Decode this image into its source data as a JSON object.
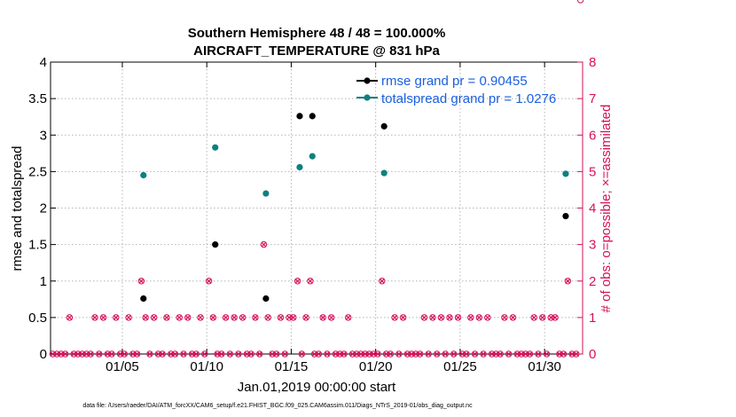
{
  "chart_data": {
    "type": "scatter",
    "title_line1": "Southern Hemisphere 48 / 48 = 100.000%",
    "title_line2": "AIRCRAFT_TEMPERATURE @ 831 hPa",
    "ylabel_left": "rmse and totalspread",
    "ylabel_right": "# of obs: o=possible; ×=assimilated",
    "xlabel": "Jan.01,2019 00:00:00 start",
    "footer": "data file: /Users/raeder/DAI/ATM_forcXX/CAM6_setup/f.e21.FHIST_BGC.f09_025.CAM6assim.011/Diags_NTrS_2019-01/obs_diag_output.nc",
    "xlim": [
      0.75,
      32.25
    ],
    "ylim_left": [
      0,
      4
    ],
    "ylim_right": [
      0,
      8
    ],
    "left_ticks": [
      "0",
      "0.5",
      "1",
      "1.5",
      "2",
      "2.5",
      "3",
      "3.5",
      "4"
    ],
    "left_tick_values": [
      0,
      0.5,
      1,
      1.5,
      2,
      2.5,
      3,
      3.5,
      4
    ],
    "right_ticks": [
      "0",
      "1",
      "2",
      "3",
      "4",
      "5",
      "6",
      "7",
      "8"
    ],
    "right_tick_values": [
      0,
      1,
      2,
      3,
      4,
      5,
      6,
      7,
      8
    ],
    "x_ticks": [
      "01/05",
      "01/10",
      "01/15",
      "01/20",
      "01/25",
      "01/30"
    ],
    "x_tick_values": [
      5,
      10,
      15,
      20,
      25,
      30
    ],
    "series": [
      {
        "name": "rmse",
        "legend": "rmse grand pr = 0.90455",
        "color": "#000000",
        "x": [
          6.25,
          10.5,
          13.5,
          15.5,
          16.25,
          20.5,
          31.25
        ],
        "y": [
          0.76,
          1.5,
          0.76,
          3.26,
          3.26,
          3.12,
          1.89
        ]
      },
      {
        "name": "totalspread",
        "legend": "totalspread grand pr = 1.0276",
        "color": "#0e8080",
        "x": [
          6.25,
          10.5,
          13.5,
          15.5,
          16.25,
          20.5,
          31.25
        ],
        "y": [
          2.45,
          2.83,
          2.2,
          2.56,
          2.71,
          2.48,
          2.47
        ]
      }
    ],
    "obs_color": "#d6125a",
    "obs": {
      "x": [
        0.875,
        1.125,
        1.375,
        1.625,
        1.875,
        2.125,
        2.375,
        2.625,
        2.875,
        3.125,
        3.375,
        3.625,
        3.875,
        4.125,
        4.375,
        4.625,
        4.875,
        5.125,
        5.375,
        5.625,
        5.875,
        6.125,
        6.375,
        6.625,
        6.875,
        7.125,
        7.375,
        7.625,
        7.875,
        8.125,
        8.375,
        8.625,
        8.875,
        9.125,
        9.375,
        9.625,
        9.875,
        10.125,
        10.375,
        10.625,
        10.875,
        11.125,
        11.375,
        11.625,
        11.875,
        12.125,
        12.375,
        12.625,
        12.875,
        13.125,
        13.375,
        13.625,
        13.875,
        14.125,
        14.375,
        14.625,
        14.875,
        15.125,
        15.375,
        15.625,
        15.875,
        16.125,
        16.375,
        16.625,
        16.875,
        17.125,
        17.375,
        17.625,
        17.875,
        18.125,
        18.375,
        18.625,
        18.875,
        19.125,
        19.375,
        19.625,
        19.875,
        20.125,
        20.375,
        20.625,
        20.875,
        21.125,
        21.375,
        21.625,
        21.875,
        22.125,
        22.375,
        22.625,
        22.875,
        23.125,
        23.375,
        23.625,
        23.875,
        24.125,
        24.375,
        24.625,
        24.875,
        25.125,
        25.375,
        25.625,
        25.875,
        26.125,
        26.375,
        26.625,
        26.875,
        27.125,
        27.375,
        27.625,
        27.875,
        28.125,
        28.375,
        28.625,
        28.875,
        29.125,
        29.375,
        29.625,
        29.875,
        30.125,
        30.375,
        30.625,
        30.875,
        31.125,
        31.375,
        31.625,
        31.875,
        32.125
      ],
      "count": [
        0,
        0,
        0,
        0,
        1,
        0,
        0,
        0,
        0,
        0,
        1,
        0,
        1,
        0,
        0,
        1,
        0,
        0,
        1,
        0,
        0,
        2,
        1,
        0,
        1,
        0,
        0,
        1,
        0,
        0,
        1,
        0,
        1,
        0,
        0,
        1,
        0,
        2,
        1,
        0,
        0,
        1,
        0,
        1,
        0,
        1,
        0,
        0,
        1,
        0,
        3,
        1,
        0,
        0,
        1,
        0,
        1,
        1,
        2,
        0,
        1,
        2,
        0,
        0,
        1,
        0,
        1,
        0,
        0,
        0,
        1,
        0,
        0,
        0,
        0,
        0,
        0,
        0,
        2,
        0,
        0,
        1,
        0,
        1,
        0,
        0,
        0,
        0,
        1,
        0,
        1,
        0,
        1,
        0,
        1,
        0,
        1,
        0,
        0,
        1,
        0,
        1,
        0,
        1,
        0,
        0,
        0,
        1,
        0,
        1,
        0,
        0,
        0,
        0,
        1,
        0,
        1,
        0,
        1,
        1,
        0,
        0,
        2,
        0,
        0
      ]
    }
  }
}
